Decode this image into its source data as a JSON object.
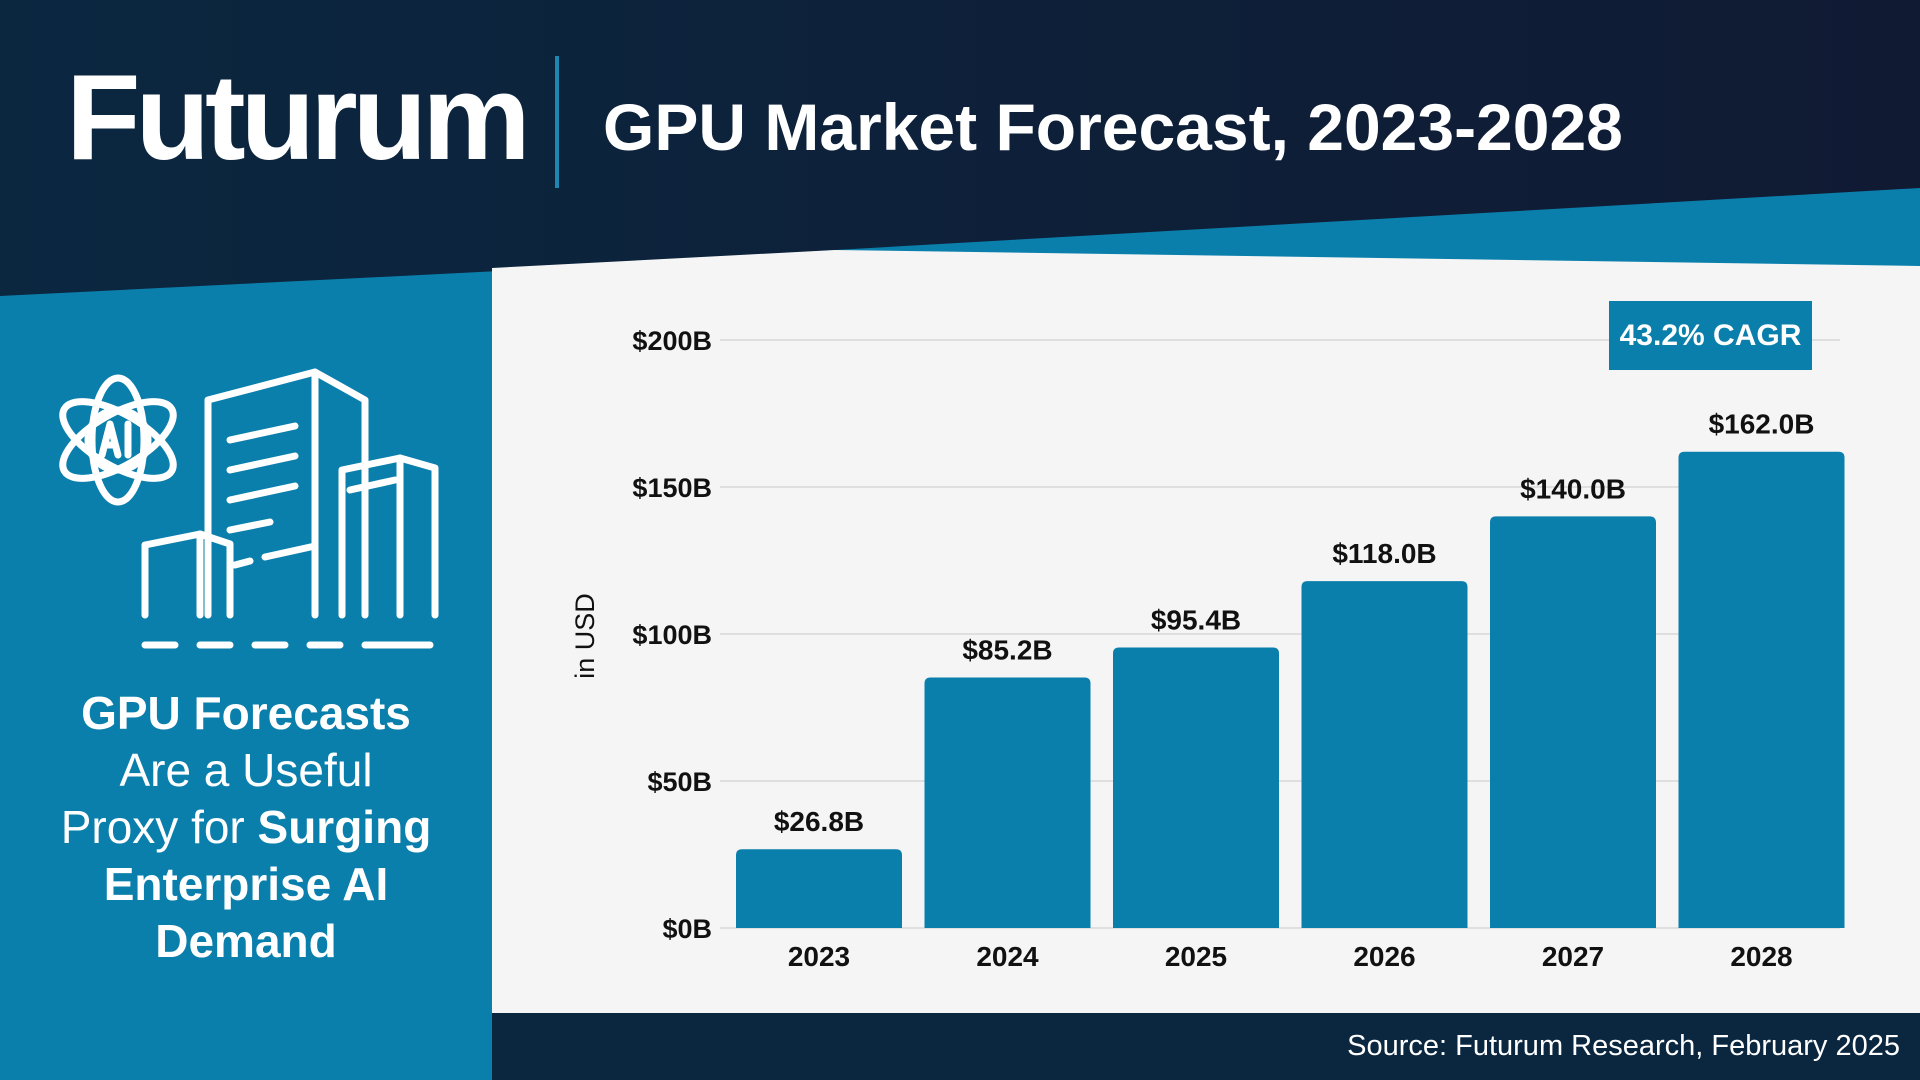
{
  "header": {
    "logo": "Futurum",
    "title": "GPU Market Forecast, 2023-2028"
  },
  "sidebar": {
    "icon": "ai-buildings-icon",
    "tagline": {
      "line1_bold": "GPU Forecasts",
      "line2": "Are a Useful",
      "line3_regular": "Proxy for ",
      "line3_bold": "Surging",
      "line4_bold": "Enterprise AI",
      "line5_bold": "Demand"
    }
  },
  "footer": {
    "source": "Source: Futurum Research, February 2025"
  },
  "colors": {
    "navy": "#0b2740",
    "blue": "#0a7fac",
    "panel": "#f5f5f5",
    "text_dark": "#111111"
  },
  "chart_data": {
    "type": "bar",
    "title": "GPU Market Forecast, 2023-2028",
    "ylabel": "in USD",
    "xlabel": "",
    "categories": [
      "2023",
      "2024",
      "2025",
      "2026",
      "2027",
      "2028"
    ],
    "values": [
      26.8,
      85.2,
      95.4,
      118.0,
      140.0,
      162.0
    ],
    "value_labels": [
      "$26.8B",
      "$85.2B",
      "$95.4B",
      "$118.0B",
      "$140.0B",
      "$162.0B"
    ],
    "yticks": [
      0,
      50,
      100,
      150,
      200
    ],
    "ytick_labels": [
      "$0B",
      "$50B",
      "$100B",
      "$150B",
      "$200B"
    ],
    "ylim": [
      0,
      200
    ],
    "grid": true,
    "annotation": "43.2% CAGR"
  }
}
